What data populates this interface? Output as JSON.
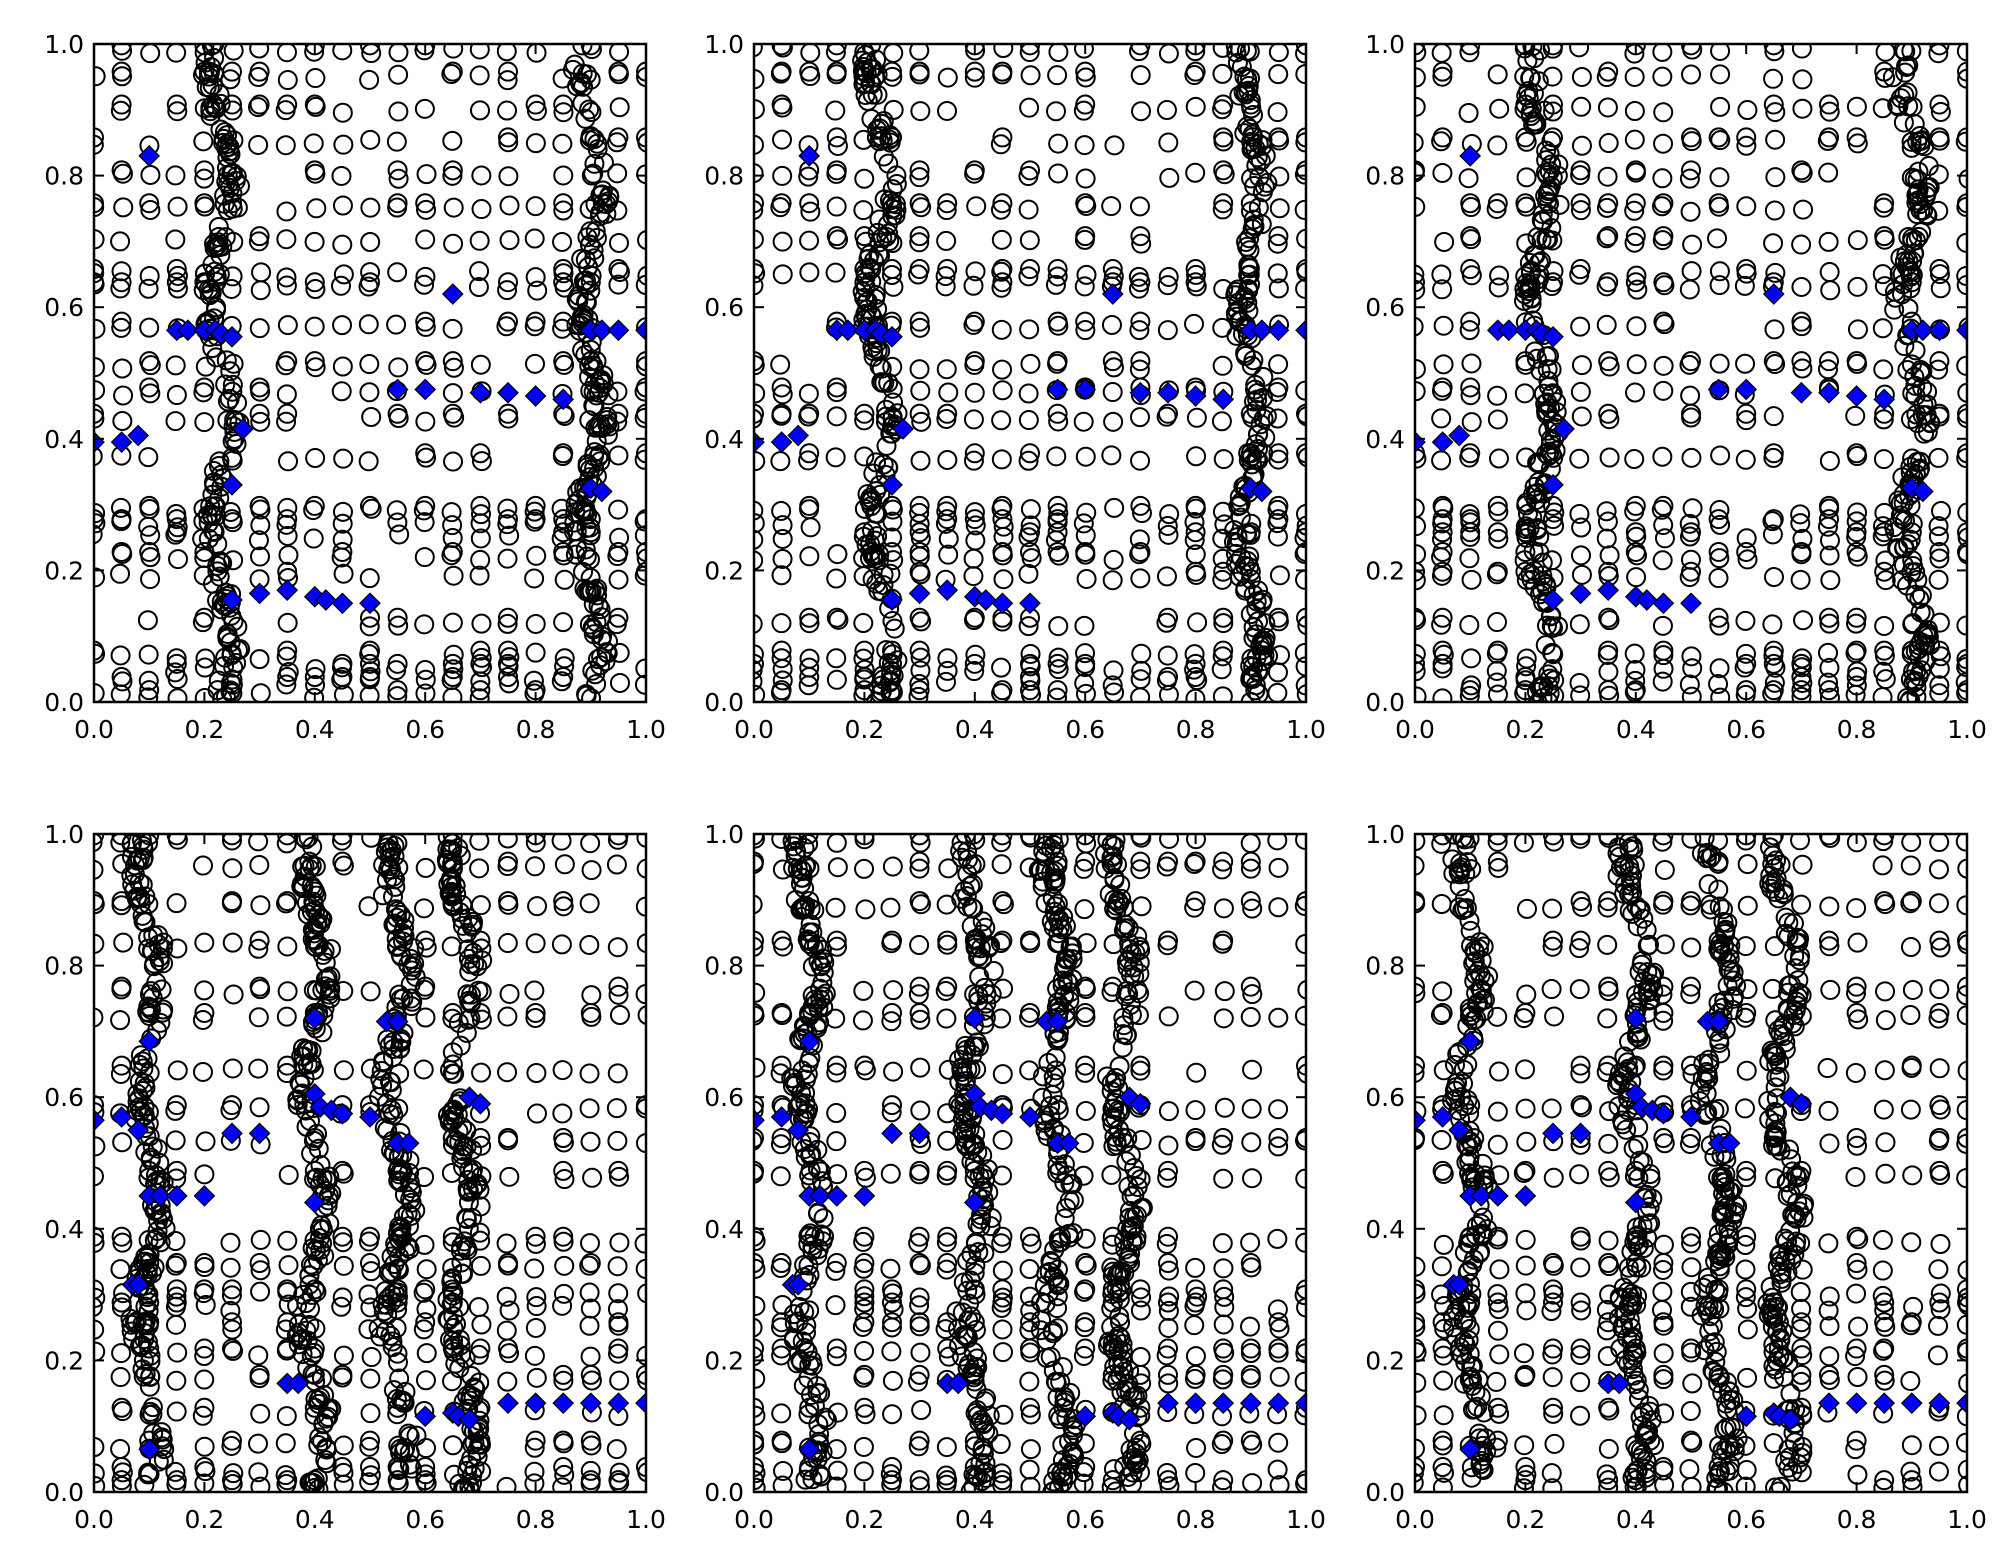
{
  "chart_data": [
    {
      "type": "scatter",
      "panel": "top-left",
      "xlim": [
        0,
        1
      ],
      "ylim": [
        0,
        1
      ],
      "band_x": [
        0.23,
        0.9
      ],
      "marker_color": "#0000ff",
      "grid": false
    },
    {
      "type": "scatter",
      "panel": "top-middle",
      "xlim": [
        0,
        1
      ],
      "ylim": [
        0,
        1
      ],
      "band_x": [
        0.23,
        0.9
      ],
      "marker_color": "#0000ff",
      "grid": false
    },
    {
      "type": "scatter",
      "panel": "top-right",
      "xlim": [
        0,
        1
      ],
      "ylim": [
        0,
        1
      ],
      "band_x": [
        0.23,
        0.9
      ],
      "marker_color": "#0000ff",
      "grid": false
    },
    {
      "type": "scatter",
      "panel": "bottom-left",
      "xlim": [
        0,
        1
      ],
      "ylim": [
        0,
        1
      ],
      "band_x": [
        0.1,
        0.4,
        0.55,
        0.67
      ],
      "marker_color": "#0000ff",
      "grid": false
    },
    {
      "type": "scatter",
      "panel": "bottom-middle",
      "xlim": [
        0,
        1
      ],
      "ylim": [
        0,
        1
      ],
      "band_x": [
        0.1,
        0.4,
        0.55,
        0.67
      ],
      "marker_color": "#0000ff",
      "grid": false
    },
    {
      "type": "scatter",
      "panel": "bottom-right",
      "xlim": [
        0,
        1
      ],
      "ylim": [
        0,
        1
      ],
      "band_x": [
        0.1,
        0.4,
        0.55,
        0.67
      ],
      "marker_color": "#0000ff",
      "grid": false
    }
  ],
  "ticks": [
    "0.0",
    "0.2",
    "0.4",
    "0.6",
    "0.8",
    "1.0"
  ],
  "diamonds_top": [
    [
      0.1,
      0.83
    ],
    [
      0.65,
      0.62
    ],
    [
      0.15,
      0.565
    ],
    [
      0.17,
      0.565
    ],
    [
      0.2,
      0.565
    ],
    [
      0.22,
      0.565
    ],
    [
      0.23,
      0.56
    ],
    [
      0.25,
      0.555
    ],
    [
      0.9,
      0.565
    ],
    [
      0.92,
      0.565
    ],
    [
      0.95,
      0.565
    ],
    [
      1.0,
      0.565
    ],
    [
      0.55,
      0.475
    ],
    [
      0.6,
      0.475
    ],
    [
      0.7,
      0.47
    ],
    [
      0.75,
      0.47
    ],
    [
      0.8,
      0.465
    ],
    [
      0.85,
      0.46
    ],
    [
      0.0,
      0.395
    ],
    [
      0.05,
      0.395
    ],
    [
      0.08,
      0.405
    ],
    [
      0.27,
      0.415
    ],
    [
      0.25,
      0.33
    ],
    [
      0.9,
      0.325
    ],
    [
      0.92,
      0.32
    ],
    [
      0.25,
      0.155
    ],
    [
      0.3,
      0.165
    ],
    [
      0.35,
      0.17
    ],
    [
      0.4,
      0.16
    ],
    [
      0.42,
      0.155
    ],
    [
      0.45,
      0.15
    ],
    [
      0.5,
      0.15
    ]
  ],
  "diamonds_bottom": [
    [
      0.0,
      0.565
    ],
    [
      0.05,
      0.57
    ],
    [
      0.1,
      0.685
    ],
    [
      0.08,
      0.55
    ],
    [
      0.1,
      0.45
    ],
    [
      0.12,
      0.45
    ],
    [
      0.15,
      0.45
    ],
    [
      0.2,
      0.45
    ],
    [
      0.25,
      0.545
    ],
    [
      0.3,
      0.545
    ],
    [
      0.07,
      0.315
    ],
    [
      0.08,
      0.315
    ],
    [
      0.1,
      0.065
    ],
    [
      0.35,
      0.165
    ],
    [
      0.37,
      0.165
    ],
    [
      0.4,
      0.72
    ],
    [
      0.4,
      0.605
    ],
    [
      0.41,
      0.585
    ],
    [
      0.43,
      0.58
    ],
    [
      0.45,
      0.575
    ],
    [
      0.5,
      0.57
    ],
    [
      0.4,
      0.44
    ],
    [
      0.53,
      0.715
    ],
    [
      0.55,
      0.715
    ],
    [
      0.55,
      0.53
    ],
    [
      0.57,
      0.53
    ],
    [
      0.6,
      0.115
    ],
    [
      0.65,
      0.12
    ],
    [
      0.66,
      0.115
    ],
    [
      0.68,
      0.11
    ],
    [
      0.68,
      0.6
    ],
    [
      0.7,
      0.59
    ],
    [
      0.75,
      0.135
    ],
    [
      0.8,
      0.135
    ],
    [
      0.85,
      0.135
    ],
    [
      0.9,
      0.135
    ],
    [
      0.95,
      0.135
    ],
    [
      1.0,
      0.135
    ]
  ],
  "circle_rows_top": [
    0.01,
    0.03,
    0.05,
    0.07,
    0.12,
    0.19,
    0.22,
    0.25,
    0.27,
    0.29,
    0.37,
    0.43,
    0.47,
    0.51,
    0.57,
    0.63,
    0.65,
    0.7,
    0.75,
    0.8,
    0.85,
    0.9,
    0.95,
    0.99
  ],
  "circle_rows_bottom": [
    0.01,
    0.03,
    0.07,
    0.12,
    0.17,
    0.21,
    0.25,
    0.28,
    0.3,
    0.34,
    0.38,
    0.48,
    0.53,
    0.58,
    0.64,
    0.72,
    0.76,
    0.83,
    0.89,
    0.95,
    0.99
  ]
}
